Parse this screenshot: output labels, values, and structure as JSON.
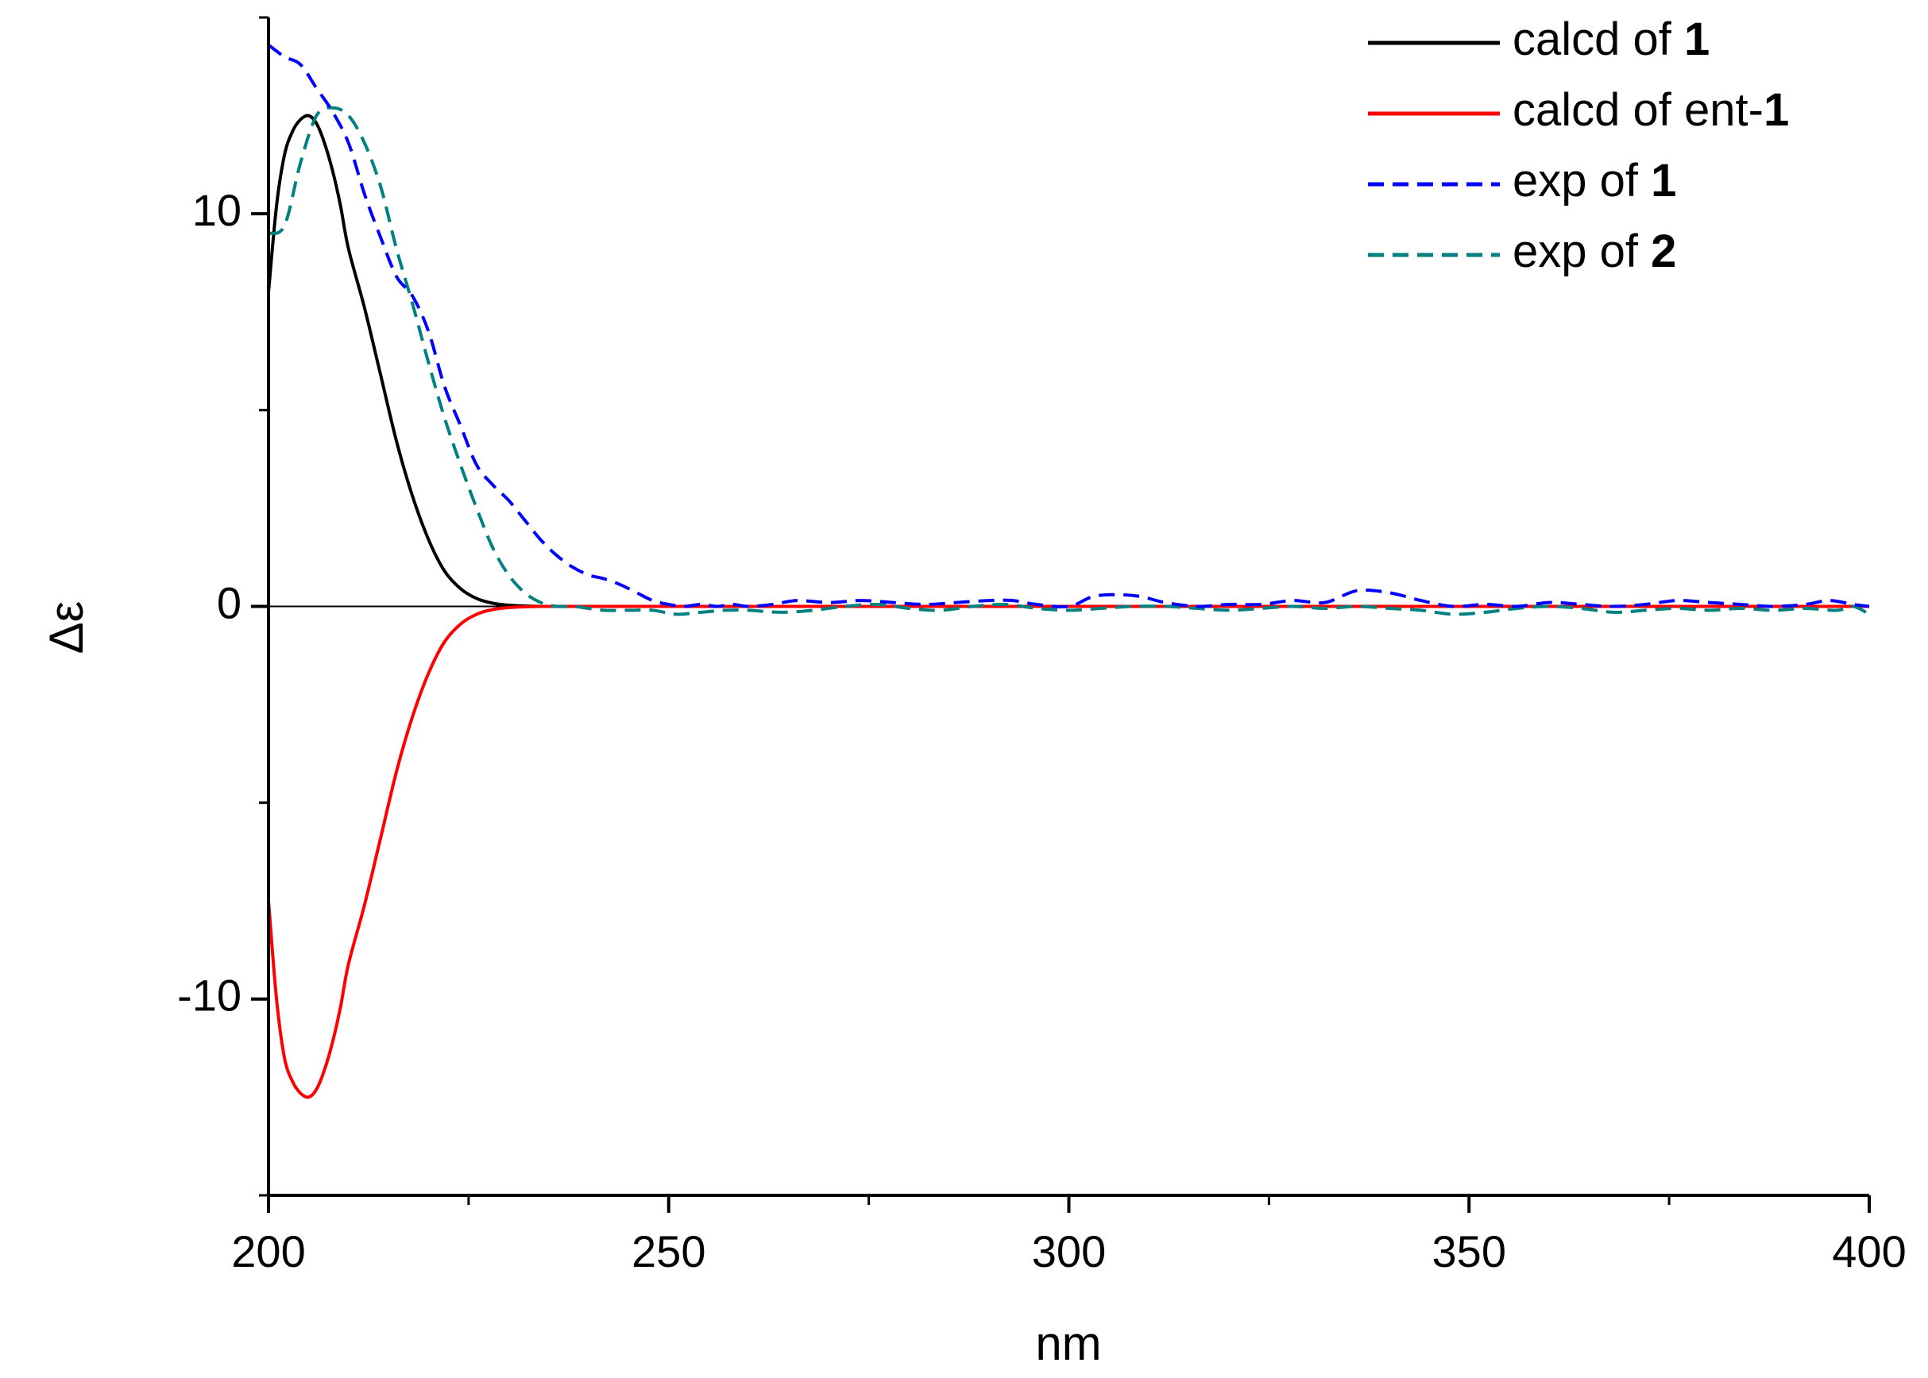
{
  "chart_data": {
    "type": "line",
    "title": "",
    "xlabel": "nm",
    "ylabel": "Δε",
    "xlim": [
      200,
      400
    ],
    "ylim": [
      -15,
      15
    ],
    "x_ticks": [
      200,
      250,
      300,
      350,
      400
    ],
    "x_tick_labels": [
      "200",
      "250",
      "300",
      "350",
      "400"
    ],
    "y_ticks": [
      -10,
      0,
      10
    ],
    "y_tick_labels": [
      "-10",
      "0",
      "10"
    ],
    "zero_line": true,
    "grid": false,
    "legend_position": "top-right",
    "series": [
      {
        "name": "calcd of 1",
        "legend_prefix": "calcd of ",
        "legend_bold": "1",
        "legend_suffix": "",
        "color": "#000000",
        "dash": "solid",
        "x": [
          200,
          201,
          202,
          203,
          204,
          205,
          206,
          207,
          208,
          209,
          210,
          212,
          214,
          216,
          218,
          220,
          222,
          224,
          226,
          228,
          230,
          232,
          234,
          236,
          240,
          250,
          300,
          350,
          400
        ],
        "y": [
          8.0,
          10.2,
          11.5,
          12.1,
          12.4,
          12.5,
          12.3,
          11.8,
          11.1,
          10.2,
          9.1,
          7.6,
          5.9,
          4.2,
          2.8,
          1.7,
          0.9,
          0.45,
          0.2,
          0.08,
          0.03,
          0.01,
          0.0,
          0.0,
          0.0,
          0.0,
          0.0,
          0.0,
          0.0
        ]
      },
      {
        "name": "calcd of ent-1",
        "legend_prefix": "calcd of ent-",
        "legend_bold": "1",
        "legend_suffix": "",
        "color": "#ff0000",
        "dash": "solid",
        "x": [
          200,
          201,
          202,
          203,
          204,
          205,
          206,
          207,
          208,
          209,
          210,
          212,
          214,
          216,
          218,
          220,
          222,
          224,
          226,
          228,
          230,
          232,
          234,
          236,
          240,
          250,
          300,
          350,
          400
        ],
        "y": [
          -7.5,
          -10.0,
          -11.5,
          -12.1,
          -12.4,
          -12.5,
          -12.3,
          -11.8,
          -11.1,
          -10.2,
          -9.1,
          -7.6,
          -5.9,
          -4.2,
          -2.8,
          -1.7,
          -0.9,
          -0.45,
          -0.2,
          -0.08,
          -0.03,
          -0.01,
          0.0,
          0.0,
          0.0,
          0.0,
          0.0,
          0.0,
          0.0
        ]
      },
      {
        "name": "exp of 1",
        "legend_prefix": "exp of ",
        "legend_bold": "1",
        "legend_suffix": "",
        "color": "#0000ff",
        "dash": "dashed",
        "x": [
          200,
          202,
          204,
          206,
          208,
          210,
          212,
          214,
          216,
          218,
          220,
          222,
          224,
          226,
          228,
          230,
          232,
          234,
          236,
          238,
          240,
          242,
          244,
          246,
          248,
          250,
          252,
          254,
          256,
          258,
          260,
          263,
          266,
          270,
          274,
          278,
          282,
          286,
          290,
          293,
          296,
          300,
          303,
          306,
          309,
          312,
          316,
          320,
          324,
          328,
          332,
          336,
          340,
          344,
          348,
          352,
          356,
          360,
          364,
          368,
          372,
          376,
          380,
          384,
          388,
          392,
          395,
          398,
          400
        ],
        "y": [
          14.3,
          14.0,
          13.8,
          13.2,
          12.6,
          11.8,
          10.5,
          9.4,
          8.4,
          7.9,
          7.0,
          5.6,
          4.6,
          3.6,
          3.1,
          2.7,
          2.2,
          1.7,
          1.3,
          1.0,
          0.8,
          0.7,
          0.55,
          0.35,
          0.15,
          0.05,
          0.0,
          0.05,
          0.0,
          0.05,
          0.0,
          0.05,
          0.15,
          0.1,
          0.15,
          0.1,
          0.05,
          0.1,
          0.15,
          0.15,
          0.05,
          0.0,
          0.25,
          0.3,
          0.25,
          0.1,
          0.0,
          0.05,
          0.05,
          0.15,
          0.1,
          0.4,
          0.35,
          0.15,
          0.0,
          0.05,
          0.0,
          0.1,
          0.05,
          0.0,
          0.05,
          0.15,
          0.1,
          0.05,
          0.0,
          0.05,
          0.15,
          0.05,
          0.0
        ]
      },
      {
        "name": "exp of 2",
        "legend_prefix": "exp of ",
        "legend_bold": "2",
        "legend_suffix": "",
        "color": "#008080",
        "dash": "dashed",
        "x": [
          200,
          202,
          204,
          206,
          208,
          210,
          212,
          214,
          216,
          218,
          220,
          222,
          224,
          226,
          228,
          230,
          232,
          234,
          236,
          238,
          240,
          242,
          245,
          248,
          251,
          254,
          257,
          260,
          264,
          268,
          272,
          276,
          280,
          284,
          288,
          292,
          296,
          300,
          304,
          308,
          312,
          316,
          320,
          324,
          328,
          332,
          336,
          340,
          344,
          348,
          352,
          356,
          360,
          364,
          368,
          372,
          376,
          380,
          384,
          388,
          392,
          396,
          398,
          400
        ],
        "y": [
          9.5,
          9.7,
          11.3,
          12.5,
          12.7,
          12.5,
          11.8,
          10.7,
          9.1,
          7.7,
          6.2,
          4.8,
          3.6,
          2.5,
          1.5,
          0.8,
          0.35,
          0.1,
          0.0,
          0.0,
          -0.05,
          -0.1,
          -0.1,
          -0.1,
          -0.2,
          -0.15,
          -0.1,
          -0.1,
          -0.15,
          -0.1,
          0.0,
          0.05,
          -0.05,
          -0.1,
          0.0,
          0.05,
          -0.05,
          -0.1,
          -0.05,
          0.0,
          0.0,
          -0.05,
          -0.1,
          -0.05,
          0.0,
          -0.05,
          0.0,
          -0.05,
          -0.1,
          -0.2,
          -0.15,
          -0.05,
          0.0,
          -0.05,
          -0.15,
          -0.1,
          -0.05,
          -0.1,
          -0.05,
          -0.1,
          -0.05,
          -0.1,
          0.0,
          -0.2
        ]
      }
    ]
  }
}
